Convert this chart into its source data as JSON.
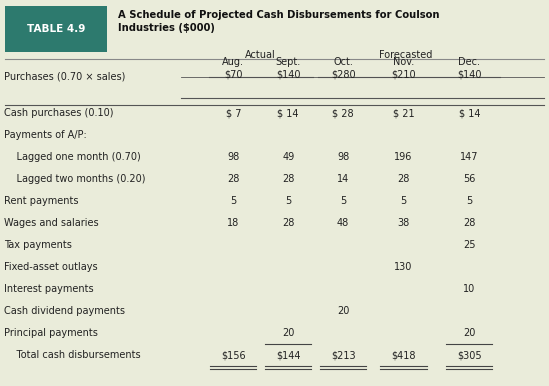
{
  "title_label": "TABLE 4.9",
  "title_text": "A Schedule of Projected Cash Disbursements for Coulson\nIndustries ($000)",
  "header_group1": "Actual",
  "header_group2": "Forecasted",
  "col_headers": [
    "Aug.\n$70",
    "Sept.\n$140",
    "Oct.\n$280",
    "Nov.\n$210",
    "Dec.\n$140"
  ],
  "row_label_col": "Purchases (0.70 × sales)",
  "rows": [
    {
      "label": "Cash purchases (0.10)",
      "values": [
        "$ 7",
        "$ 14",
        "$ 28",
        "$ 21",
        "$ 14"
      ]
    },
    {
      "label": "Payments of A/P:",
      "values": [
        "",
        "",
        "",
        "",
        ""
      ]
    },
    {
      "label": "    Lagged one month (0.70)",
      "values": [
        "98",
        "49",
        "98",
        "196",
        "147"
      ]
    },
    {
      "label": "    Lagged two months (0.20)",
      "values": [
        "28",
        "28",
        "14",
        "28",
        "56"
      ]
    },
    {
      "label": "Rent payments",
      "values": [
        "5",
        "5",
        "5",
        "5",
        "5"
      ]
    },
    {
      "label": "Wages and salaries",
      "values": [
        "18",
        "28",
        "48",
        "38",
        "28"
      ]
    },
    {
      "label": "Tax payments",
      "values": [
        "",
        "",
        "",
        "",
        "25"
      ]
    },
    {
      "label": "Fixed-asset outlays",
      "values": [
        "",
        "",
        "",
        "130",
        ""
      ]
    },
    {
      "label": "Interest payments",
      "values": [
        "",
        "",
        "",
        "",
        "10"
      ]
    },
    {
      "label": "Cash dividend payments",
      "values": [
        "",
        "",
        "20",
        "",
        ""
      ]
    },
    {
      "label": "Principal payments",
      "values": [
        "",
        "20",
        "",
        "",
        "20"
      ],
      "underline_vals": [
        1,
        4
      ]
    },
    {
      "label": "    Total cash disbursements",
      "values": [
        "$156",
        "$144",
        "$213",
        "$418",
        "$305"
      ],
      "double_underline": true
    }
  ],
  "bg_color": "#eaecda",
  "header_bg": "#2d7a6e",
  "header_text_color": "#ffffff",
  "line_color": "#555555"
}
